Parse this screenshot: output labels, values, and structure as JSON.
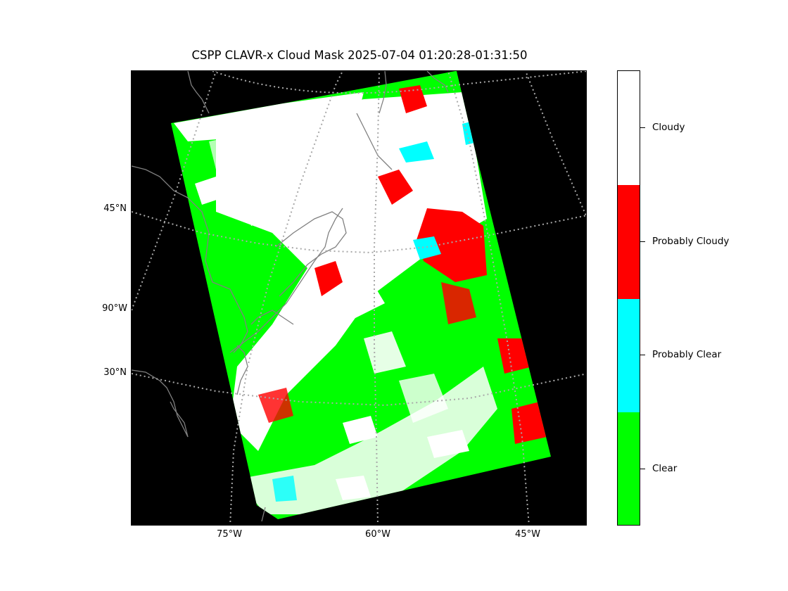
{
  "title": "CSPP CLAVR-x Cloud Mask 2025-07-04 01:20:28-01:31:50",
  "map": {
    "background_color": "#000000",
    "coastline_color": "#808080",
    "gridline_color": "#a9a9a9",
    "longitude_labels": [
      "75°W",
      "60°W",
      "45°W"
    ],
    "latitude_labels": [
      "45°N",
      "90°W",
      "30°N"
    ]
  },
  "colorbar": {
    "categories": [
      {
        "name": "Cloudy",
        "color": "#ffffff"
      },
      {
        "name": "Probably Cloudy",
        "color": "#ff0000"
      },
      {
        "name": "Probably Clear",
        "color": "#00ffff"
      },
      {
        "name": "Clear",
        "color": "#00ff00"
      }
    ]
  }
}
